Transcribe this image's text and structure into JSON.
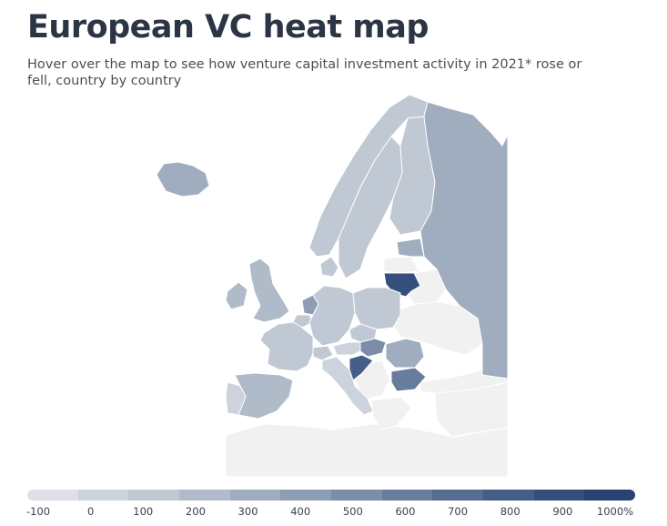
{
  "header": {
    "title": "European VC heat map",
    "subtitle": "Hover over the map to see how venture capital investment activity in 2021* rose or fell, country by country"
  },
  "map_data": {
    "type": "choropleth",
    "regions": [
      {
        "id": "iceland",
        "name": "Iceland",
        "bucket": 4
      },
      {
        "id": "norway",
        "name": "Norway",
        "bucket": 2
      },
      {
        "id": "sweden",
        "name": "Sweden",
        "bucket": 2
      },
      {
        "id": "finland",
        "name": "Finland",
        "bucket": 2
      },
      {
        "id": "russia",
        "name": "Russia",
        "bucket": 4
      },
      {
        "id": "estonia",
        "name": "Estonia",
        "bucket": 4
      },
      {
        "id": "latvia",
        "name": "Latvia",
        "bucket": 0
      },
      {
        "id": "lithuania",
        "name": "Lithuania",
        "bucket": 10
      },
      {
        "id": "belarus",
        "name": "Belarus",
        "bucket": 0
      },
      {
        "id": "ukraine",
        "name": "Ukraine",
        "bucket": 0
      },
      {
        "id": "ireland",
        "name": "Ireland",
        "bucket": 3
      },
      {
        "id": "uk",
        "name": "United Kingdom",
        "bucket": 3
      },
      {
        "id": "netherlands",
        "name": "Netherlands",
        "bucket": 5
      },
      {
        "id": "belgium",
        "name": "Belgium",
        "bucket": 2
      },
      {
        "id": "denmark",
        "name": "Denmark",
        "bucket": 2
      },
      {
        "id": "germany",
        "name": "Germany",
        "bucket": 2
      },
      {
        "id": "poland",
        "name": "Poland",
        "bucket": 2
      },
      {
        "id": "france",
        "name": "France",
        "bucket": 2
      },
      {
        "id": "switzerland",
        "name": "Switzerland",
        "bucket": 2
      },
      {
        "id": "austria",
        "name": "Austria",
        "bucket": 1
      },
      {
        "id": "czechia",
        "name": "Czechia",
        "bucket": 2
      },
      {
        "id": "hungary",
        "name": "Hungary",
        "bucket": 6
      },
      {
        "id": "croatia",
        "name": "Croatia",
        "bucket": 9
      },
      {
        "id": "romania",
        "name": "Romania",
        "bucket": 4
      },
      {
        "id": "bulgaria",
        "name": "Bulgaria",
        "bucket": 7
      },
      {
        "id": "italy",
        "name": "Italy",
        "bucket": 1
      },
      {
        "id": "spain",
        "name": "Spain",
        "bucket": 3
      },
      {
        "id": "portugal",
        "name": "Portugal",
        "bucket": 1
      },
      {
        "id": "greece",
        "name": "Greece",
        "bucket": 0
      },
      {
        "id": "balkans",
        "name": "Balkans",
        "bucket": 0
      },
      {
        "id": "turkey",
        "name": "Turkey",
        "bucket": 0
      },
      {
        "id": "north-africa",
        "name": "North Africa",
        "bucket": 0
      },
      {
        "id": "middle-east",
        "name": "Middle East",
        "bucket": 0
      }
    ]
  },
  "legend": {
    "labels": [
      "-100",
      "0",
      "100",
      "200",
      "300",
      "400",
      "500",
      "600",
      "700",
      "800",
      "900",
      "1000%"
    ],
    "colors": [
      "#dde1e6",
      "#cdd3dc",
      "#bfc8d3",
      "#b0bbc9",
      "#a0adbf",
      "#8e9db4",
      "#7b8da8",
      "#687d9d",
      "#566d91",
      "#445e86",
      "#344f7b",
      "#284371"
    ]
  },
  "no_data_color": "#f1f1f1"
}
